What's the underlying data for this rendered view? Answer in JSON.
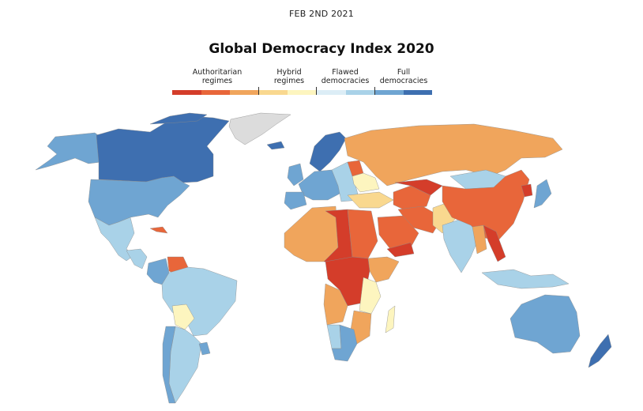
{
  "header": {
    "date": "FEB 2ND 2021",
    "title": "Global Democracy Index 2020"
  },
  "legend": {
    "categories": [
      {
        "line1": "Authoritarian",
        "line2": "regimes"
      },
      {
        "line1": "Hybrid",
        "line2": "regimes"
      },
      {
        "line1": "Flawed",
        "line2": "democracies"
      },
      {
        "line1": "Full",
        "line2": "democracies"
      }
    ],
    "colors": [
      "#d43d2a",
      "#e8663a",
      "#f0a55c",
      "#f9d88f",
      "#fdf5bf",
      "#dcedf6",
      "#a9d2e8",
      "#6fa5d2",
      "#3e6fb0"
    ]
  },
  "map": {
    "no_data_color": "#dcdcdc",
    "regions": [
      {
        "name": "canada",
        "cls": 8
      },
      {
        "name": "usa",
        "cls": 7
      },
      {
        "name": "alaska",
        "cls": 7
      },
      {
        "name": "greenland",
        "cls": -1
      },
      {
        "name": "mexico",
        "cls": 6
      },
      {
        "name": "central-america",
        "cls": 6
      },
      {
        "name": "cuba",
        "cls": 1
      },
      {
        "name": "venezuela",
        "cls": 1
      },
      {
        "name": "colombia",
        "cls": 7
      },
      {
        "name": "brazil",
        "cls": 6
      },
      {
        "name": "bolivia",
        "cls": 4
      },
      {
        "name": "argentina",
        "cls": 6
      },
      {
        "name": "chile",
        "cls": 7
      },
      {
        "name": "uruguay",
        "cls": 7
      },
      {
        "name": "scandinavia",
        "cls": 8
      },
      {
        "name": "iceland",
        "cls": 8
      },
      {
        "name": "uk",
        "cls": 7
      },
      {
        "name": "western-europe",
        "cls": 7
      },
      {
        "name": "spain",
        "cls": 7
      },
      {
        "name": "eastern-europe",
        "cls": 6
      },
      {
        "name": "ukraine",
        "cls": 4
      },
      {
        "name": "belarus",
        "cls": 1
      },
      {
        "name": "russia",
        "cls": 2
      },
      {
        "name": "turkey",
        "cls": 3
      },
      {
        "name": "middle-east",
        "cls": 1
      },
      {
        "name": "iran",
        "cls": 1
      },
      {
        "name": "central-asia",
        "cls": 0
      },
      {
        "name": "china",
        "cls": 1
      },
      {
        "name": "mongolia",
        "cls": 6
      },
      {
        "name": "korea-north",
        "cls": 0
      },
      {
        "name": "japan",
        "cls": 7
      },
      {
        "name": "india",
        "cls": 6
      },
      {
        "name": "pakistan",
        "cls": 3
      },
      {
        "name": "myanmar",
        "cls": 2
      },
      {
        "name": "laos-vietnam",
        "cls": 0
      },
      {
        "name": "se-asia-islands",
        "cls": 6
      },
      {
        "name": "west-africa",
        "cls": 2
      },
      {
        "name": "libya-chad",
        "cls": 0
      },
      {
        "name": "egypt-sudan",
        "cls": 1
      },
      {
        "name": "saudi",
        "cls": 1
      },
      {
        "name": "yemen",
        "cls": 0
      },
      {
        "name": "horn-africa",
        "cls": 2
      },
      {
        "name": "central-africa",
        "cls": 0
      },
      {
        "name": "east-africa",
        "cls": 4
      },
      {
        "name": "angola",
        "cls": 2
      },
      {
        "name": "southern-africa",
        "cls": 7
      },
      {
        "name": "namibia",
        "cls": 6
      },
      {
        "name": "mozambique",
        "cls": 2
      },
      {
        "name": "madagascar",
        "cls": 4
      },
      {
        "name": "australia",
        "cls": 7
      },
      {
        "name": "new-zealand",
        "cls": 8
      }
    ]
  }
}
